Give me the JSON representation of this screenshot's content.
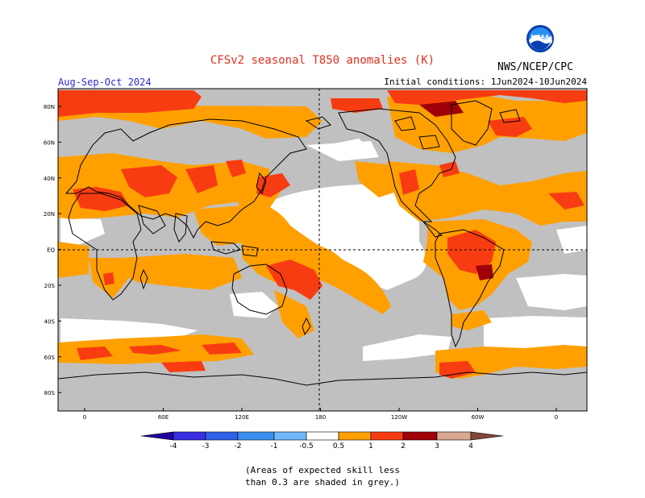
{
  "header": {
    "title": "CFSv2 seasonal T850 anomalies (K)",
    "season": "Aug-Sep-Oct 2024",
    "initial_conditions": "Initial conditions: 1Jun2024-10Jun2024",
    "agency": "NWS/NCEP/CPC",
    "logo_text": "NOAA"
  },
  "map": {
    "lat_labels": [
      "80N",
      "60N",
      "40N",
      "20N",
      "EQ",
      "20S",
      "40S",
      "60S",
      "80S"
    ],
    "lon_labels": [
      "0",
      "60E",
      "120E",
      "180",
      "120W",
      "60W",
      "0"
    ],
    "reference_lines": [
      "180",
      "EQ"
    ]
  },
  "legend": {
    "tick_labels": [
      "-4",
      "-3",
      "-2",
      "-1",
      "-0.5",
      "0.5",
      "1",
      "2",
      "3",
      "4"
    ],
    "colors": {
      "below_-4": "#2000a0",
      "-4_-3": "#3a2ee0",
      "-3_-2": "#3060e8",
      "-2_-1": "#3c8ef0",
      "-1_-0.5": "#70b8f8",
      "-0.5_0.5": "#ffffff",
      "0.5_1": "#ffa000",
      "1_2": "#f83c12",
      "2_3": "#a00008",
      "3_4": "#d8a890",
      "above_4": "#804838"
    },
    "mask_color": "#c0c0c0"
  },
  "footnote": {
    "line1": "(Areas of expected skill less",
    "line2": "than 0.3 are shaded in grey.)"
  }
}
